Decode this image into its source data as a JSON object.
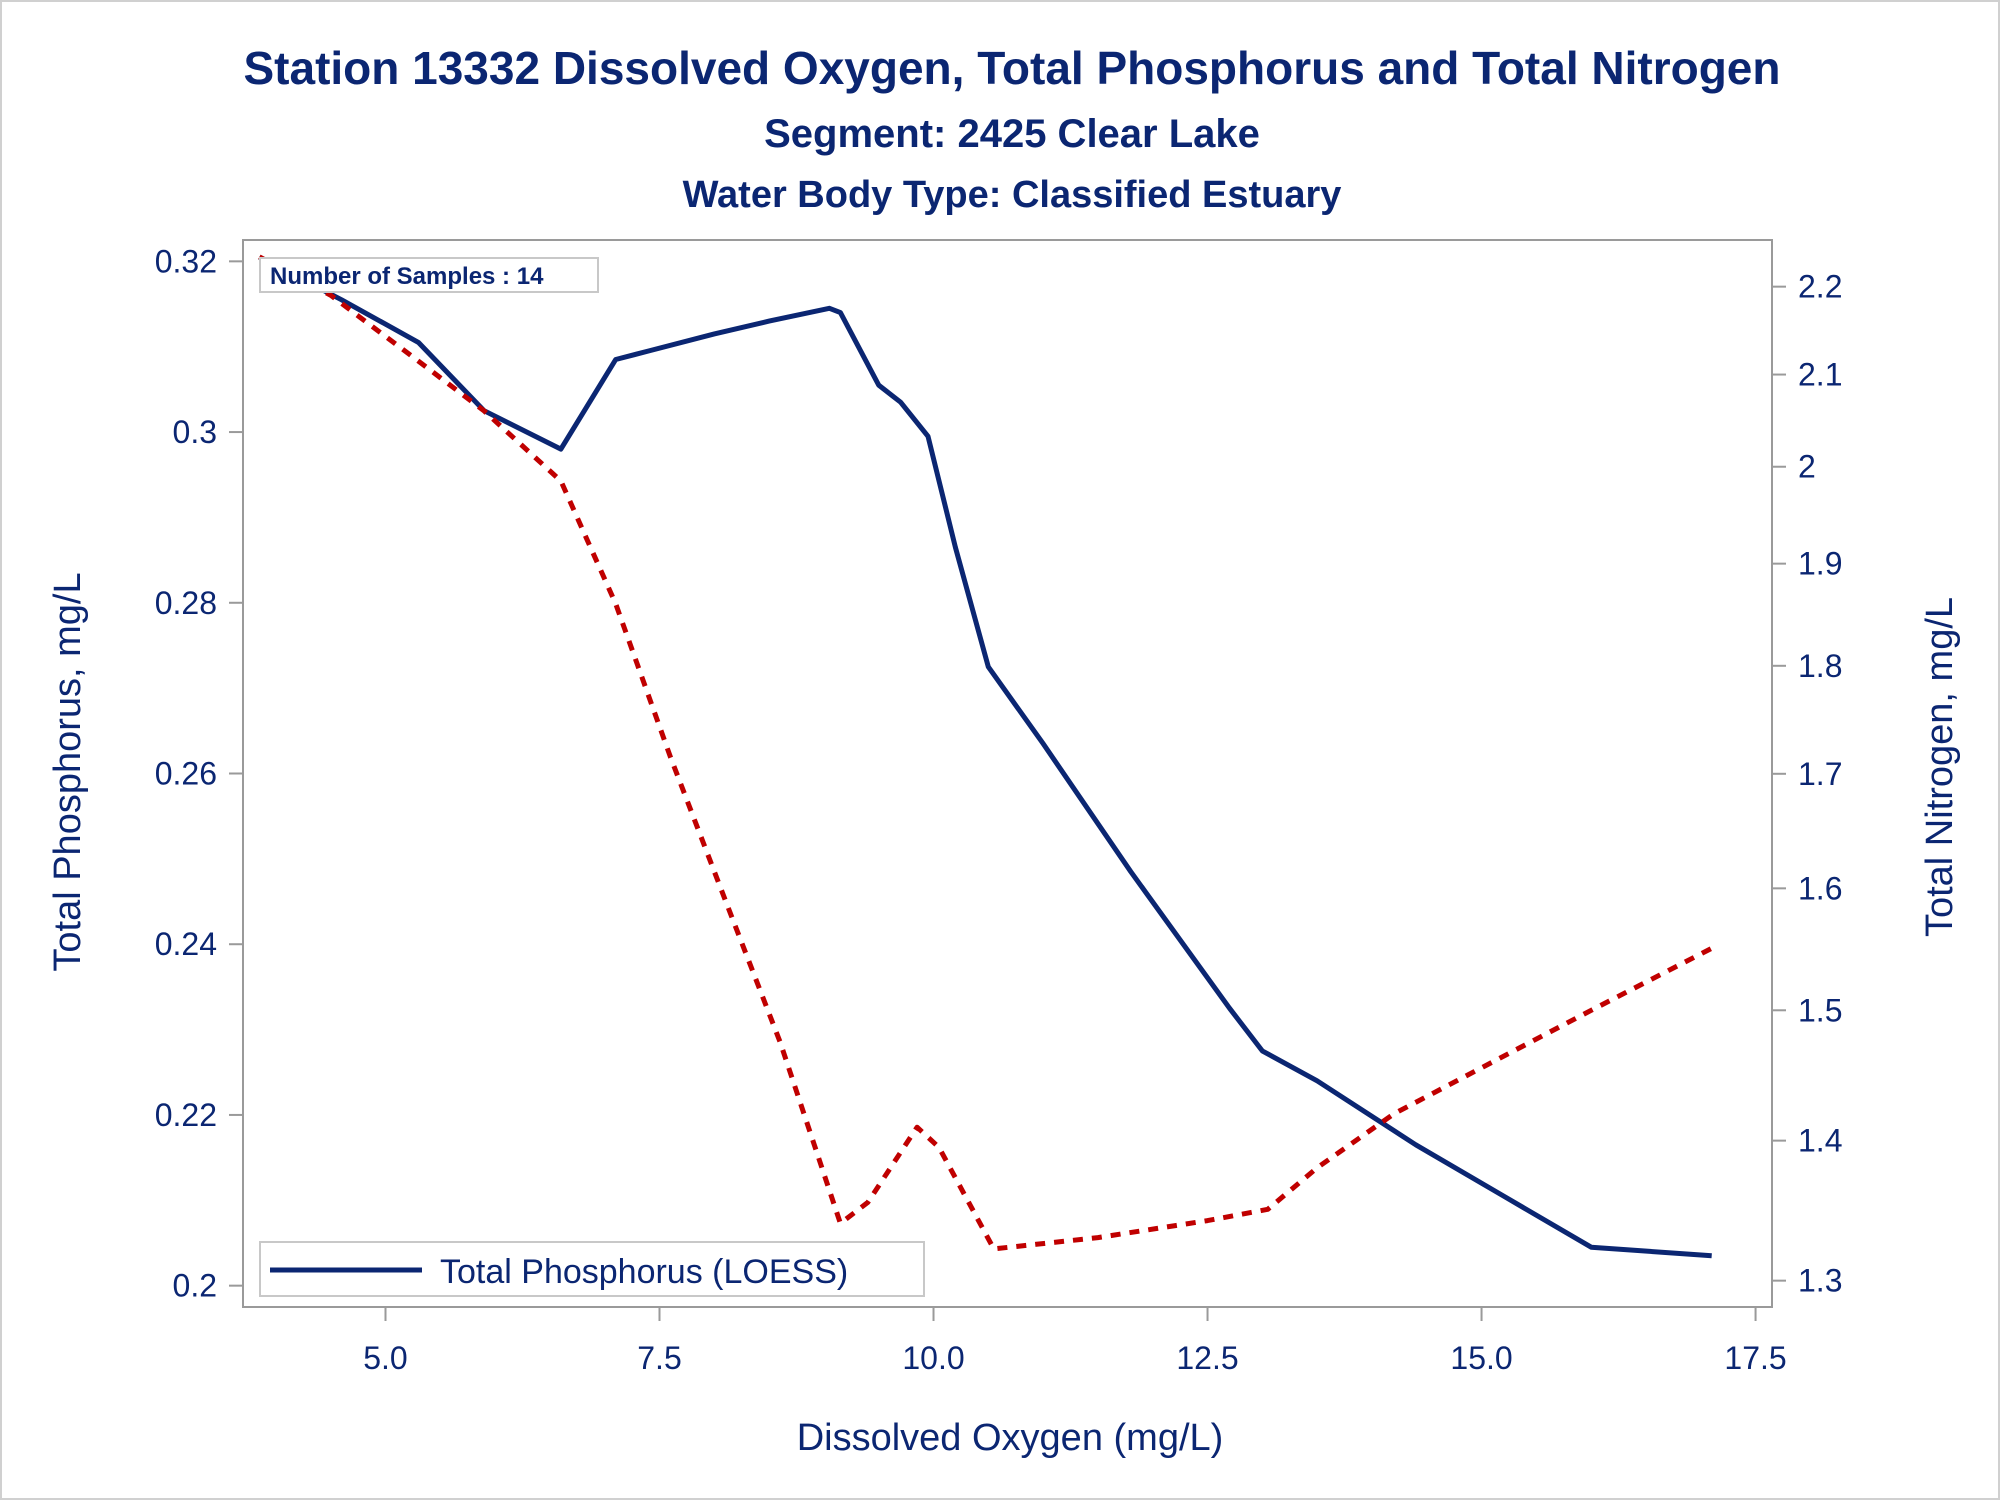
{
  "chart_data": {
    "type": "line",
    "title": "Station 13332  Dissolved Oxygen, Total Phosphorus and Total Nitrogen",
    "subtitle": "Segment: 2425  Clear Lake",
    "subtitle2": "Water Body Type: Classified Estuary",
    "xlabel": "Dissolved Oxygen (mg/L)",
    "ylabel": "Total Phosphorus, mg/L",
    "y2label": "Total Nitrogen, mg/L",
    "xlim": [
      3.7,
      17.65
    ],
    "ylim": [
      0.1975,
      0.3225
    ],
    "y2lim": [
      1.282,
      2.255
    ],
    "y2scale": "log",
    "x_ticks": [
      5.0,
      7.5,
      10.0,
      12.5,
      15.0,
      17.5
    ],
    "x_tick_labels": [
      "5.0",
      "7.5",
      "10.0",
      "12.5",
      "15.0",
      "17.5"
    ],
    "y_ticks": [
      0.2,
      0.22,
      0.24,
      0.26,
      0.28,
      0.3,
      0.32
    ],
    "y_tick_labels": [
      "0.2",
      "0.22",
      "0.24",
      "0.26",
      "0.28",
      "0.3",
      "0.32"
    ],
    "y2_ticks": [
      1.3,
      1.4,
      1.5,
      1.6,
      1.7,
      1.8,
      1.9,
      2.0,
      2.1,
      2.2
    ],
    "y2_tick_labels": [
      "1.3",
      "1.4",
      "1.5",
      "1.6",
      "1.7",
      "1.8",
      "1.9",
      "2",
      "2.1",
      "2.2"
    ],
    "annotation": "Number of Samples : 14",
    "legend": {
      "position": "bottom-left",
      "entries": [
        "Total Phosphorus (LOESS)"
      ]
    },
    "grid": false,
    "series": [
      {
        "name": "Total Phosphorus (LOESS)",
        "axis": "left",
        "style": "solid",
        "color": "#0b2672",
        "x": [
          3.85,
          4.6,
          5.3,
          5.9,
          6.6,
          7.1,
          7.4,
          8.0,
          8.5,
          9.05,
          9.15,
          9.5,
          9.7,
          9.95,
          10.2,
          10.5,
          11.0,
          11.8,
          12.7,
          13.0,
          13.5,
          14.4,
          15.2,
          16.0,
          17.1
        ],
        "y": [
          0.3205,
          0.3155,
          0.3105,
          0.3025,
          0.298,
          0.3085,
          0.3095,
          0.3115,
          0.313,
          0.3145,
          0.314,
          0.3055,
          0.3035,
          0.2995,
          0.2865,
          0.2725,
          0.2635,
          0.2485,
          0.2325,
          0.2275,
          0.224,
          0.2165,
          0.2105,
          0.2045,
          0.2035
        ]
      },
      {
        "name": "",
        "axis": "right",
        "style": "dashed",
        "color": "#c00000",
        "x": [
          3.85,
          4.5,
          5.3,
          5.9,
          6.6,
          7.1,
          7.6,
          8.1,
          8.6,
          9.15,
          9.4,
          9.85,
          10.05,
          10.55,
          11.5,
          12.5,
          13.05,
          13.5,
          14.2,
          15.0,
          16.0,
          17.1
        ],
        "y": [
          2.235,
          2.19,
          2.115,
          2.06,
          1.985,
          1.86,
          1.715,
          1.59,
          1.475,
          1.34,
          1.355,
          1.41,
          1.395,
          1.322,
          1.33,
          1.342,
          1.35,
          1.38,
          1.42,
          1.455,
          1.5,
          1.55
        ]
      }
    ]
  }
}
